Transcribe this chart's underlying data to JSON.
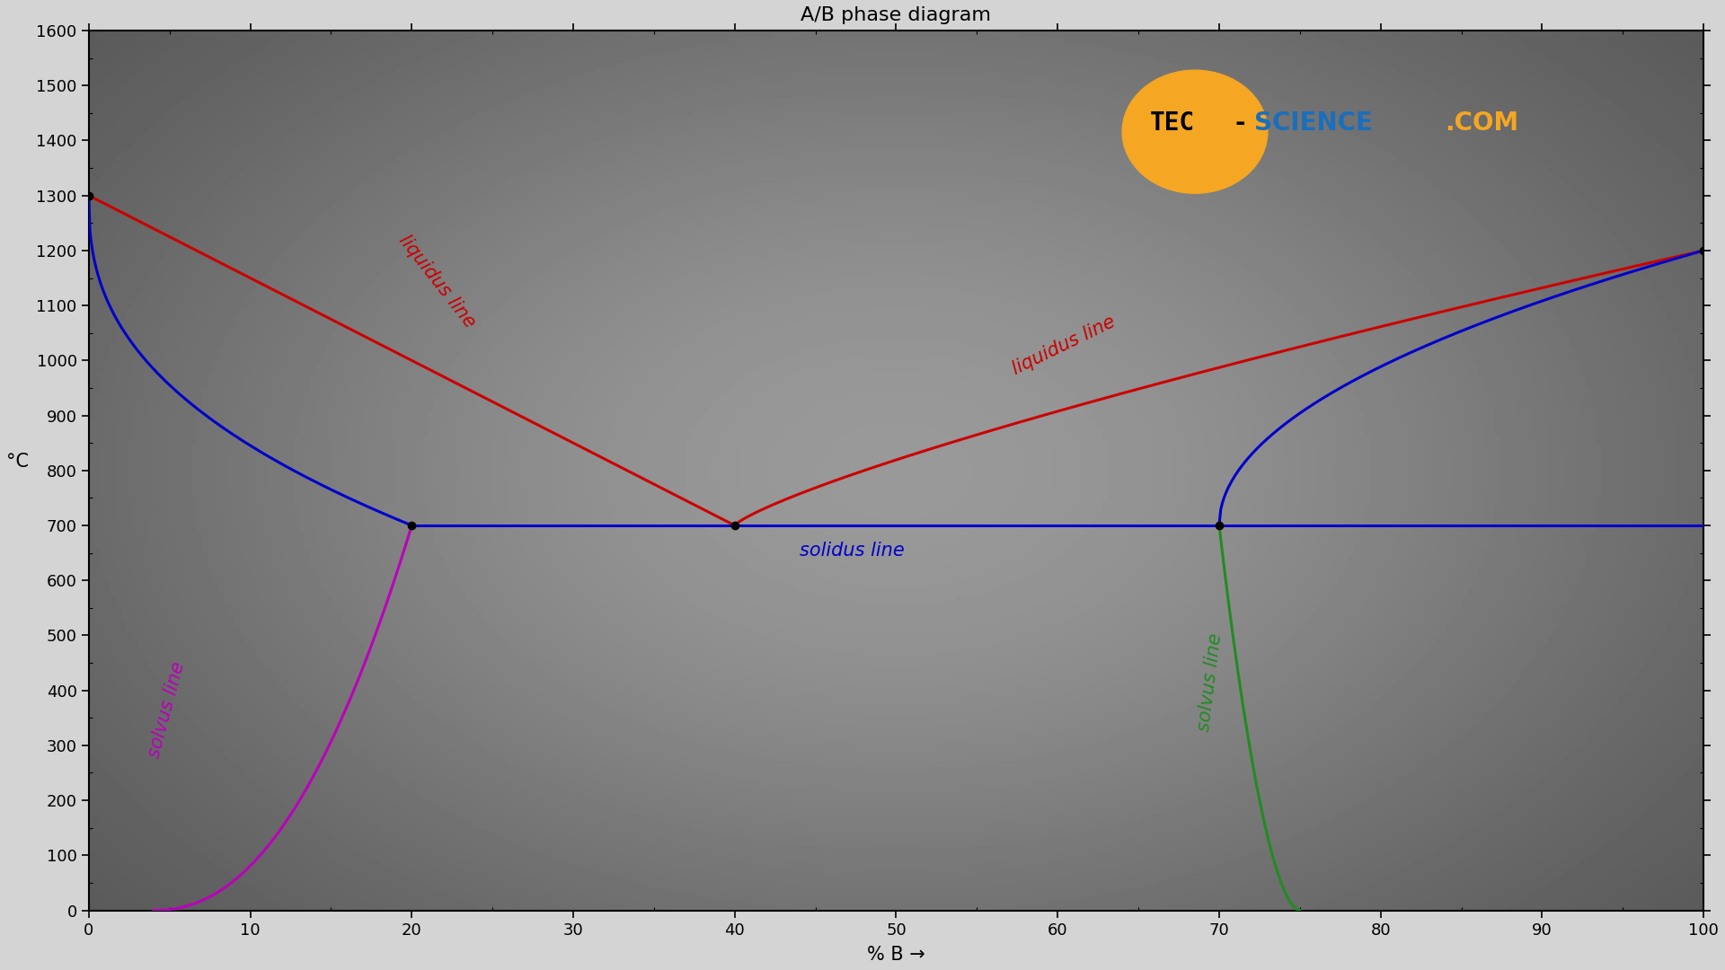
{
  "title": "A/B phase diagram",
  "xlabel": "% B →",
  "ylabel": "°C",
  "xlim": [
    0,
    100
  ],
  "ylim": [
    0,
    1600
  ],
  "xticks": [
    0,
    10,
    20,
    30,
    40,
    50,
    60,
    70,
    80,
    90,
    100
  ],
  "yticks": [
    0,
    100,
    200,
    300,
    400,
    500,
    600,
    700,
    800,
    900,
    1000,
    1100,
    1200,
    1300,
    1400,
    1500,
    1600
  ],
  "bg_color": "#d4d4d4",
  "title_fontsize": 16,
  "axis_label_fontsize": 15,
  "tick_fontsize": 13,
  "line_width": 2.2,
  "liquidus_color": "#cc0000",
  "solidus_color": "#0000cc",
  "solvus_left_color": "#bb00bb",
  "solvus_right_color": "#228B22",
  "label_color_liquidus": "#cc0000",
  "label_color_solidus": "#0000cc",
  "label_color_solvus_left": "#bb00bb",
  "label_color_solvus_right": "#228B22"
}
